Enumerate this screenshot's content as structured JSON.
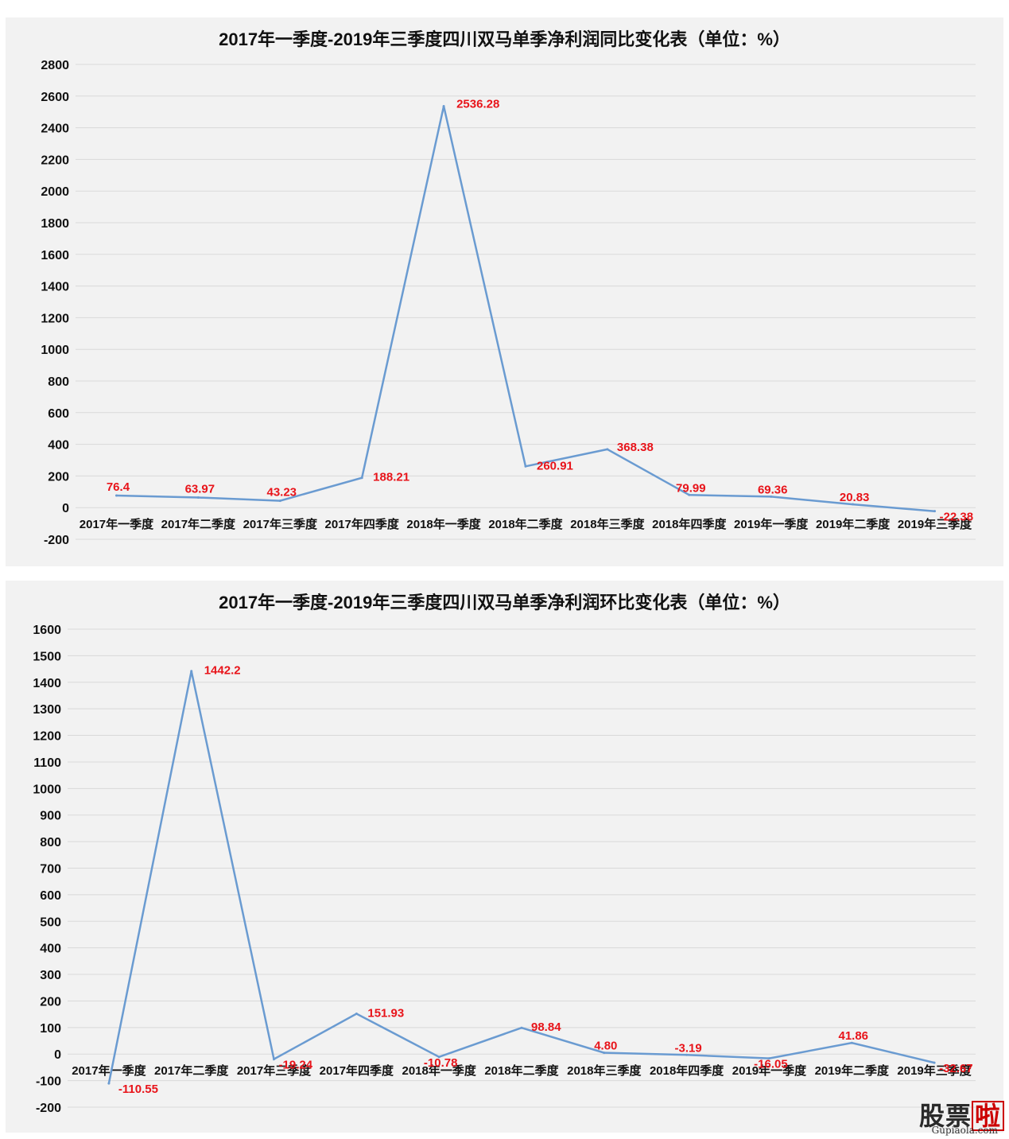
{
  "charts": [
    {
      "id": "yoy",
      "type": "line",
      "title": "2017年一季度-2019年三季度四川双马单季净利润同比变化表（单位：%）",
      "categories": [
        "2017年一季度",
        "2017年二季度",
        "2017年三季度",
        "2017年四季度",
        "2018年一季度",
        "2018年二季度",
        "2018年三季度",
        "2018年四季度",
        "2019年一季度",
        "2019年二季度",
        "2019年三季度"
      ],
      "values": [
        76.4,
        63.97,
        43.23,
        188.21,
        2536.28,
        260.91,
        368.38,
        79.99,
        69.36,
        20.83,
        -22.38
      ],
      "labels": [
        "76.4",
        "63.97",
        "43.23",
        "188.21",
        "2536.28",
        "260.91",
        "368.38",
        "79.99",
        "69.36",
        "20.83",
        "-22.38"
      ],
      "ylim": [
        -200,
        2800
      ],
      "ystep": 200,
      "grid": true,
      "line_color": "#6a9bd1",
      "label_color": "#e8141a"
    },
    {
      "id": "qoq",
      "type": "line",
      "title": "2017年一季度-2019年三季度四川双马单季净利润环比变化表（单位：%）",
      "categories": [
        "2017年一季度",
        "2017年二季度",
        "2017年三季度",
        "2017年四季度",
        "2018年一季度",
        "2018年二季度",
        "2018年三季度",
        "2018年四季度",
        "2019年一季度",
        "2019年二季度",
        "2019年三季度"
      ],
      "values": [
        -110.55,
        1442.2,
        -19.24,
        151.93,
        -10.78,
        98.84,
        4.8,
        -3.19,
        -16.05,
        41.86,
        -32.67
      ],
      "labels": [
        "-110.55",
        "1442.2",
        "-19.24",
        "151.93",
        "-10.78",
        "98.84",
        "4.80",
        "-3.19",
        "-16.05",
        "41.86",
        "-32.67"
      ],
      "ylim": [
        -200,
        1600
      ],
      "ystep": 100,
      "grid": true,
      "line_color": "#6a9bd1",
      "label_color": "#e8141a"
    }
  ],
  "watermark": {
    "main": "股票啦",
    "sub": "Gupiaola.com"
  }
}
